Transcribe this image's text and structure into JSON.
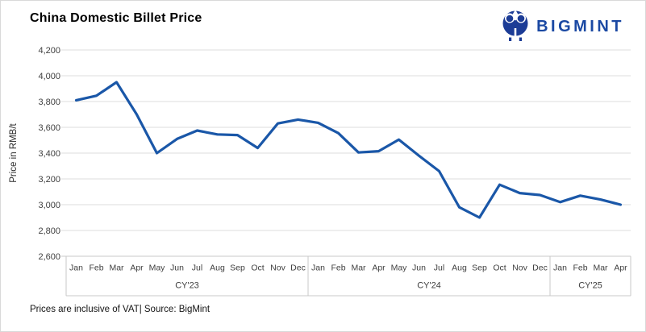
{
  "header": {
    "title": "China Domestic Billet Price",
    "logo": {
      "text": "BIGMINT",
      "color": "#1B49A3"
    }
  },
  "footer": {
    "note": "Prices are inclusive of VAT| Source: BigMint"
  },
  "chart_data": {
    "type": "line",
    "title": "China Domestic Billet Price",
    "xlabel": "",
    "ylabel": "Price in RMB/t",
    "ylim": [
      2600,
      4200
    ],
    "grid": "horizontal",
    "legend": "none",
    "line_color": "#1A57A8",
    "grid_color": "#DCDCDC",
    "axis_line_color": "#C8C8C8",
    "tick_text_color": "#3F3F3F",
    "y_ticks": [
      {
        "value": 4200,
        "label": "4,200"
      },
      {
        "value": 4000,
        "label": "4,000"
      },
      {
        "value": 3800,
        "label": "3,800"
      },
      {
        "value": 3600,
        "label": "3,600"
      },
      {
        "value": 3400,
        "label": "3,400"
      },
      {
        "value": 3200,
        "label": "3,200"
      },
      {
        "value": 3000,
        "label": "3,000"
      },
      {
        "value": 2800,
        "label": "2,800"
      },
      {
        "value": 2600,
        "label": "2,600"
      }
    ],
    "x_groups": [
      {
        "year": "CY'23",
        "months": [
          "Jan",
          "Feb",
          "Mar",
          "Apr",
          "May",
          "Jun",
          "Jul",
          "Aug",
          "Sep",
          "Oct",
          "Nov",
          "Dec"
        ]
      },
      {
        "year": "CY'24",
        "months": [
          "Jan",
          "Feb",
          "Mar",
          "Apr",
          "May",
          "Jun",
          "Jul",
          "Aug",
          "Sep",
          "Oct",
          "Nov",
          "Dec"
        ]
      },
      {
        "year": "CY'25",
        "months": [
          "Jan",
          "Feb",
          "Mar",
          "Apr"
        ]
      }
    ],
    "series": [
      {
        "name": "China Domestic Billet Price",
        "values": [
          3810,
          3845,
          3950,
          3700,
          3400,
          3510,
          3575,
          3545,
          3540,
          3440,
          3630,
          3660,
          3635,
          3555,
          3405,
          3415,
          3505,
          3380,
          3260,
          2980,
          2900,
          3155,
          3090,
          3075,
          3020,
          3070,
          3040,
          3000
        ]
      }
    ]
  }
}
